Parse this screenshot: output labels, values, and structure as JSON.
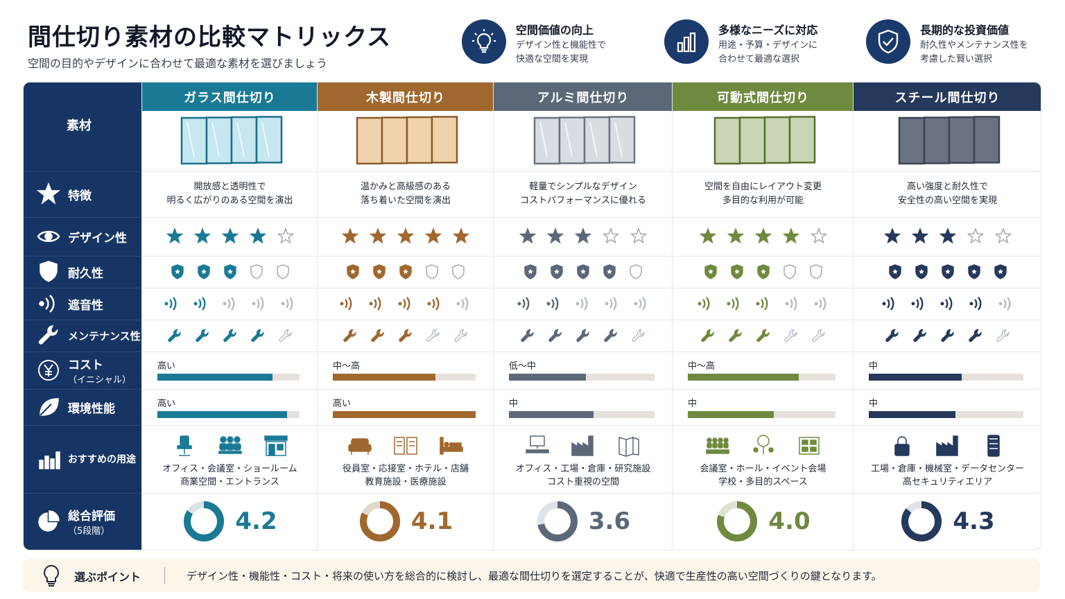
{
  "header": {
    "title": "間仕切り素材の比較マトリックス",
    "subtitle": "空間の目的やデザインに合わせて最適な素材を選びましょう"
  },
  "features": [
    {
      "icon": "lightbulb-icon",
      "title": "空間価値の向上",
      "desc": "デザイン性と機能性で\n快適な空間を実現"
    },
    {
      "icon": "bar-chart-icon",
      "title": "多様なニーズに対応",
      "desc": "用途・予算・デザインに\n合わせて最適な選択"
    },
    {
      "icon": "shield-check-icon",
      "title": "長期的な投資価値",
      "desc": "耐久性やメンテナンス性を\n考慮した賢い選択"
    }
  ],
  "row_labels": {
    "material": "素材",
    "features": "特徴",
    "design": "デザイン性",
    "durability": "耐久性",
    "sound": "遮音性",
    "maintenance": "メンテナンス性",
    "cost": "コスト",
    "cost_sub": "（イニシャル）",
    "env": "環境性能",
    "uses": "おすすめの用途",
    "overall": "総合評価",
    "overall_sub": "（5段階）"
  },
  "columns": [
    {
      "name": "ガラス間仕切り",
      "color": "#1a7a96",
      "light": "#d9e4e8",
      "panel": "glass",
      "desc": "開放感と透明性で\n明るく広がりのある空間を演出",
      "design": 4,
      "durability": 3,
      "sound": 2,
      "maintenance": 4,
      "cost_label": "高い",
      "cost_level": 0.81,
      "env_label": "高い",
      "env_level": 0.91,
      "use_icons": [
        "office-chair-icon",
        "meeting-people-icon",
        "storefront-icon"
      ],
      "uses": "オフィス・会議室・ショールーム\n商業空間・エントランス",
      "score": "4.2",
      "score_value": 4.2
    },
    {
      "name": "木製間仕切り",
      "color": "#a0682e",
      "light": "#e3d8cc",
      "panel": "wood",
      "desc": "温かみと高級感のある\n落ち着いた空間を演出",
      "design": 5,
      "durability": 3,
      "sound": 4,
      "maintenance": 3,
      "cost_label": "中〜高",
      "cost_level": 0.72,
      "env_label": "高い",
      "env_level": 1.0,
      "use_icons": [
        "sofa-icon",
        "book-icon",
        "bed-icon"
      ],
      "uses": "役員室・応接室・ホテル・店舗\n教育施設・医療施設",
      "score": "4.1",
      "score_value": 4.1
    },
    {
      "name": "アルミ間仕切り",
      "color": "#5b6878",
      "light": "#dfe2e6",
      "panel": "aluminum",
      "desc": "軽量でシンプルなデザイン\nコストパフォーマンスに優れる",
      "design": 3,
      "durability": 4,
      "sound": 2,
      "maintenance": 4,
      "cost_label": "低〜中",
      "cost_level": 0.53,
      "env_label": "中",
      "env_level": 0.58,
      "use_icons": [
        "computer-desk-icon",
        "factory-icon",
        "partition-icon"
      ],
      "uses": "オフィス・工場・倉庫・研究施設\nコスト重視の空間",
      "score": "3.6",
      "score_value": 3.6
    },
    {
      "name": "可動式間仕切り",
      "color": "#6f8a3f",
      "light": "#dde3d1",
      "panel": "movable",
      "desc": "空間を自由にレイアウト変更\n多目的な利用が可能",
      "design": 4,
      "durability": 3,
      "sound": 3,
      "maintenance": 3,
      "cost_label": "中〜高",
      "cost_level": 0.75,
      "env_label": "中",
      "env_level": 0.58,
      "use_icons": [
        "audience-icon",
        "tree-people-icon",
        "school-icon"
      ],
      "uses": "会議室・ホール・イベント会場\n学校・多目的スペース",
      "score": "4.0",
      "score_value": 4.0
    },
    {
      "name": "スチール間仕切り",
      "color": "#24395c",
      "light": "#dfe2e6",
      "panel": "steel",
      "desc": "高い強度と耐久性で\n安全性の高い空間を実現",
      "design": 3,
      "durability": 5,
      "sound": 4,
      "maintenance": 4,
      "cost_label": "中",
      "cost_level": 0.6,
      "env_label": "中",
      "env_level": 0.56,
      "use_icons": [
        "lock-icon",
        "factory-icon",
        "server-rack-icon"
      ],
      "uses": "工場・倉庫・機械室・データセンター\n高セキュリティエリア",
      "score": "4.3",
      "score_value": 4.3
    }
  ],
  "tip": {
    "label": "選ぶポイント",
    "text": "デザイン性・機能性・コスト・将来の使い方を総合的に検討し、最適な間仕切りを選定することが、快適で生産性の高い空間づくりの鍵となります。"
  }
}
